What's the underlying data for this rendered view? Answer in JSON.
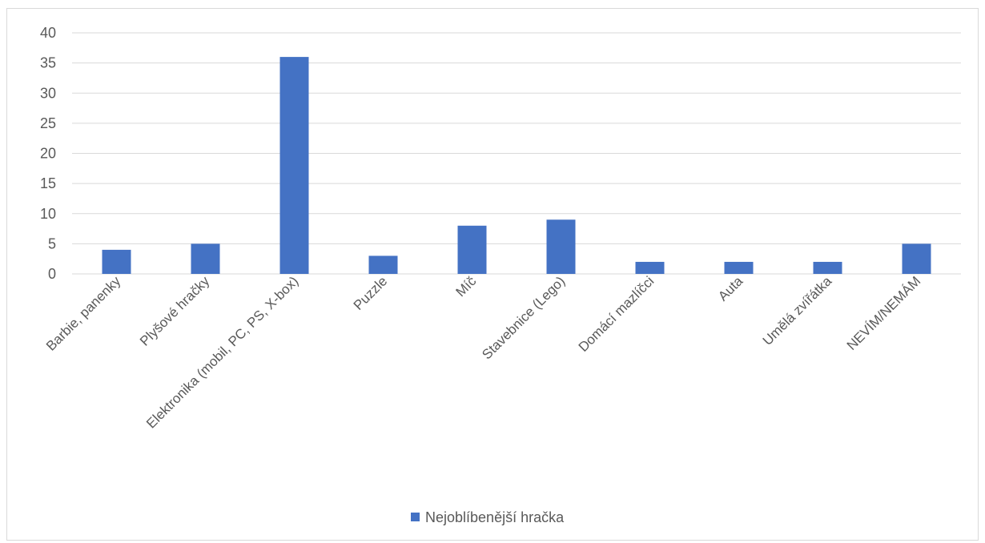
{
  "chart_data": {
    "type": "bar",
    "categories": [
      "Barbie, panenky",
      "Plyšové hračky",
      "Elektronika (mobil, PC, PS, X-box)",
      "Puzzle",
      "Míč",
      "Stavebnice (Lego)",
      "Domácí mazlíčci",
      "Auta",
      "Umělá zvířátka",
      "NEVÍM/NEMÁM"
    ],
    "series": [
      {
        "name": "Nejoblíbenější hračka",
        "values": [
          4,
          5,
          36,
          3,
          8,
          9,
          2,
          2,
          2,
          5
        ],
        "color": "#4472C4"
      }
    ],
    "ylim": [
      0,
      40
    ],
    "yticks": [
      0,
      5,
      10,
      15,
      20,
      25,
      30,
      35,
      40
    ],
    "grid": true,
    "legend_position": "bottom",
    "gridline_color": "#d9d9d9",
    "text_color": "#595959"
  }
}
